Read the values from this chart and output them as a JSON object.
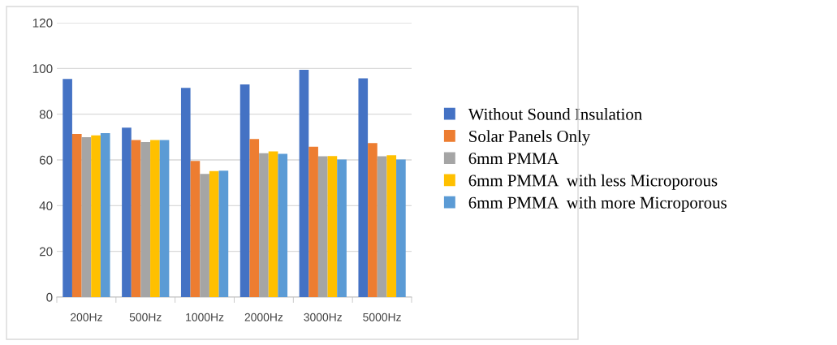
{
  "chart_data": {
    "type": "bar",
    "categories": [
      "200Hz",
      "500Hz",
      "1000Hz",
      "2000Hz",
      "3000Hz",
      "5000Hz"
    ],
    "series": [
      {
        "name": "Without Sound Insulation",
        "color": "#4472c4",
        "values": [
          95.4,
          74.1,
          91.5,
          93.0,
          99.4,
          95.7
        ]
      },
      {
        "name": "Solar Panels Only",
        "color": "#ed7d31",
        "values": [
          71.4,
          68.7,
          59.6,
          69.1,
          65.8,
          67.4
        ]
      },
      {
        "name": "6mm PMMA",
        "color": "#a5a5a5",
        "values": [
          69.9,
          67.8,
          53.9,
          62.9,
          61.6,
          61.6
        ]
      },
      {
        "name": "6mm PMMA  with less Microporous",
        "color": "#ffc000",
        "values": [
          70.7,
          68.7,
          55.1,
          63.7,
          61.7,
          62.0
        ]
      },
      {
        "name": "6mm PMMA  with more Microporous",
        "color": "#5b9bd5",
        "values": [
          71.7,
          68.7,
          55.3,
          62.7,
          60.2,
          60.2
        ]
      }
    ],
    "ylim": [
      0,
      120
    ],
    "yticks": [
      0,
      20,
      40,
      60,
      80,
      100,
      120
    ],
    "grid": "y",
    "legend": "right"
  }
}
